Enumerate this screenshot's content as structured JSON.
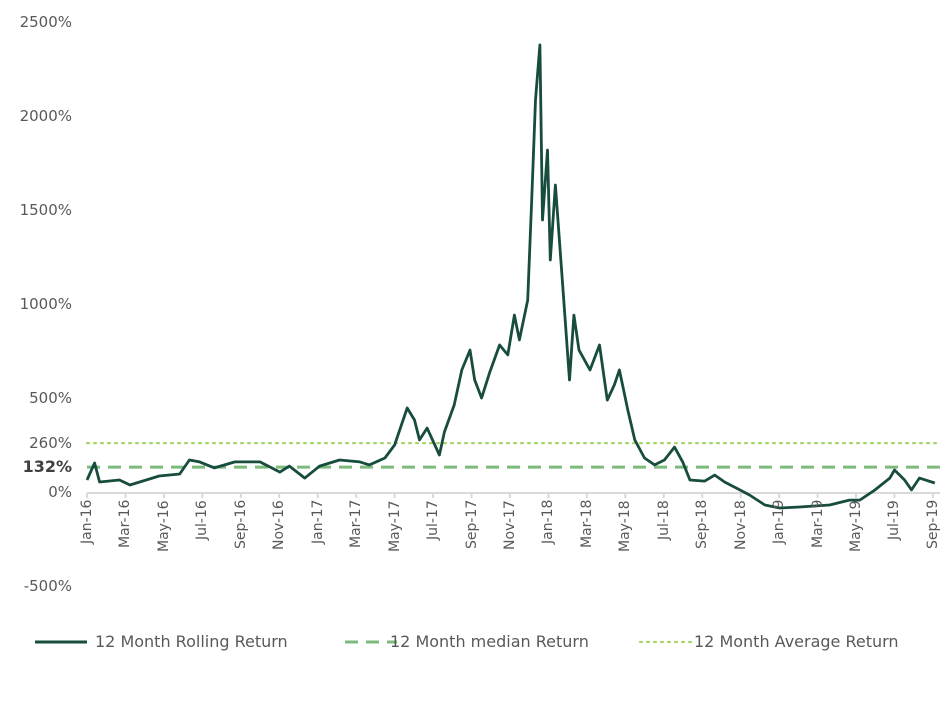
{
  "chart_data": {
    "type": "line",
    "title": "",
    "xlabel": "",
    "ylabel": "",
    "ylim": [
      -500,
      2500
    ],
    "xlim": [
      "2016-01-01",
      "2019-09-15"
    ],
    "grid": false,
    "legend_position": "bottom",
    "y_ticks": [
      {
        "value": 2500,
        "label": "2500%"
      },
      {
        "value": 2000,
        "label": "2000%"
      },
      {
        "value": 1500,
        "label": "1500%"
      },
      {
        "value": 1000,
        "label": "1000%"
      },
      {
        "value": 500,
        "label": "500%"
      },
      {
        "value": 260,
        "label": "260%"
      },
      {
        "value": 132,
        "label": "132%",
        "bold": true
      },
      {
        "value": 0,
        "label": "0%"
      },
      {
        "value": -500,
        "label": "-500%"
      }
    ],
    "x_ticks": [
      {
        "date": "2016-01-01",
        "label": "Jan-16"
      },
      {
        "date": "2016-03-01",
        "label": "Mar-16"
      },
      {
        "date": "2016-05-01",
        "label": "May-16"
      },
      {
        "date": "2016-07-01",
        "label": "Jul-16"
      },
      {
        "date": "2016-09-01",
        "label": "Sep-16"
      },
      {
        "date": "2016-11-01",
        "label": "Nov-16"
      },
      {
        "date": "2017-01-01",
        "label": "Jan-17"
      },
      {
        "date": "2017-03-01",
        "label": "Mar-17"
      },
      {
        "date": "2017-05-01",
        "label": "May-17"
      },
      {
        "date": "2017-07-01",
        "label": "Jul-17"
      },
      {
        "date": "2017-09-01",
        "label": "Sep-17"
      },
      {
        "date": "2017-11-01",
        "label": "Nov-17"
      },
      {
        "date": "2018-01-01",
        "label": "Jan-18"
      },
      {
        "date": "2018-03-01",
        "label": "Mar-18"
      },
      {
        "date": "2018-05-01",
        "label": "May-18"
      },
      {
        "date": "2018-07-01",
        "label": "Jul-18"
      },
      {
        "date": "2018-09-01",
        "label": "Sep-18"
      },
      {
        "date": "2018-11-01",
        "label": "Nov-18"
      },
      {
        "date": "2019-01-01",
        "label": "Jan-19"
      },
      {
        "date": "2019-03-01",
        "label": "Mar-19"
      },
      {
        "date": "2019-05-01",
        "label": "May-19"
      },
      {
        "date": "2019-07-01",
        "label": "Jul-19"
      },
      {
        "date": "2019-09-01",
        "label": "Sep-19"
      }
    ],
    "series": [
      {
        "name": "12 Month Rolling Return",
        "style": "solid",
        "color": "#174c3f",
        "points": [
          [
            "2016-01-01",
            64
          ],
          [
            "2016-01-13",
            154
          ],
          [
            "2016-01-21",
            53
          ],
          [
            "2016-02-22",
            64
          ],
          [
            "2016-03-08",
            37
          ],
          [
            "2016-04-24",
            85
          ],
          [
            "2016-05-26",
            96
          ],
          [
            "2016-06-11",
            170
          ],
          [
            "2016-06-27",
            160
          ],
          [
            "2016-07-20",
            128
          ],
          [
            "2016-08-22",
            160
          ],
          [
            "2016-10-01",
            160
          ],
          [
            "2016-11-02",
            106
          ],
          [
            "2016-11-17",
            138
          ],
          [
            "2016-12-11",
            74
          ],
          [
            "2017-01-04",
            138
          ],
          [
            "2017-02-05",
            170
          ],
          [
            "2017-03-07",
            160
          ],
          [
            "2017-03-22",
            144
          ],
          [
            "2017-04-16",
            181
          ],
          [
            "2017-05-01",
            250
          ],
          [
            "2017-05-21",
            447
          ],
          [
            "2017-06-02",
            383
          ],
          [
            "2017-06-10",
            277
          ],
          [
            "2017-06-22",
            340
          ],
          [
            "2017-07-11",
            197
          ],
          [
            "2017-07-19",
            319
          ],
          [
            "2017-08-04",
            463
          ],
          [
            "2017-08-16",
            649
          ],
          [
            "2017-08-29",
            755
          ],
          [
            "2017-09-06",
            596
          ],
          [
            "2017-09-17",
            500
          ],
          [
            "2017-09-30",
            638
          ],
          [
            "2017-10-15",
            782
          ],
          [
            "2017-10-28",
            729
          ],
          [
            "2017-11-08",
            941
          ],
          [
            "2017-11-16",
            809
          ],
          [
            "2017-11-29",
            1021
          ],
          [
            "2017-12-05",
            1553
          ],
          [
            "2017-12-11",
            2085
          ],
          [
            "2017-12-18",
            2378
          ],
          [
            "2017-12-22",
            1447
          ],
          [
            "2017-12-30",
            1819
          ],
          [
            "2018-01-04",
            1234
          ],
          [
            "2018-01-12",
            1633
          ],
          [
            "2018-01-23",
            1128
          ],
          [
            "2018-02-04",
            596
          ],
          [
            "2018-02-11",
            941
          ],
          [
            "2018-02-19",
            755
          ],
          [
            "2018-03-06",
            649
          ],
          [
            "2018-03-21",
            782
          ],
          [
            "2018-04-03",
            489
          ],
          [
            "2018-04-14",
            569
          ],
          [
            "2018-04-22",
            649
          ],
          [
            "2018-05-05",
            436
          ],
          [
            "2018-05-16",
            277
          ],
          [
            "2018-06-01",
            181
          ],
          [
            "2018-06-17",
            144
          ],
          [
            "2018-07-02",
            170
          ],
          [
            "2018-07-18",
            239
          ],
          [
            "2018-07-31",
            160
          ],
          [
            "2018-08-12",
            64
          ],
          [
            "2018-09-05",
            58
          ],
          [
            "2018-09-21",
            90
          ],
          [
            "2018-10-06",
            53
          ],
          [
            "2018-10-30",
            11
          ],
          [
            "2018-11-15",
            -16
          ],
          [
            "2018-12-09",
            -69
          ],
          [
            "2019-01-02",
            -85
          ],
          [
            "2019-02-03",
            -80
          ],
          [
            "2019-03-20",
            -69
          ],
          [
            "2019-04-21",
            -43
          ],
          [
            "2019-05-07",
            -43
          ],
          [
            "2019-05-31",
            11
          ],
          [
            "2019-06-24",
            74
          ],
          [
            "2019-07-01",
            117
          ],
          [
            "2019-07-17",
            64
          ],
          [
            "2019-07-28",
            11
          ],
          [
            "2019-08-10",
            74
          ],
          [
            "2019-09-04",
            48
          ]
        ]
      },
      {
        "name": "12 Month median Return",
        "style": "dashed",
        "color": "#7dbb7d",
        "constant": 132
      },
      {
        "name": "12 Month Average Return",
        "style": "dotted",
        "color": "#a9d46c",
        "constant": 260
      }
    ]
  }
}
